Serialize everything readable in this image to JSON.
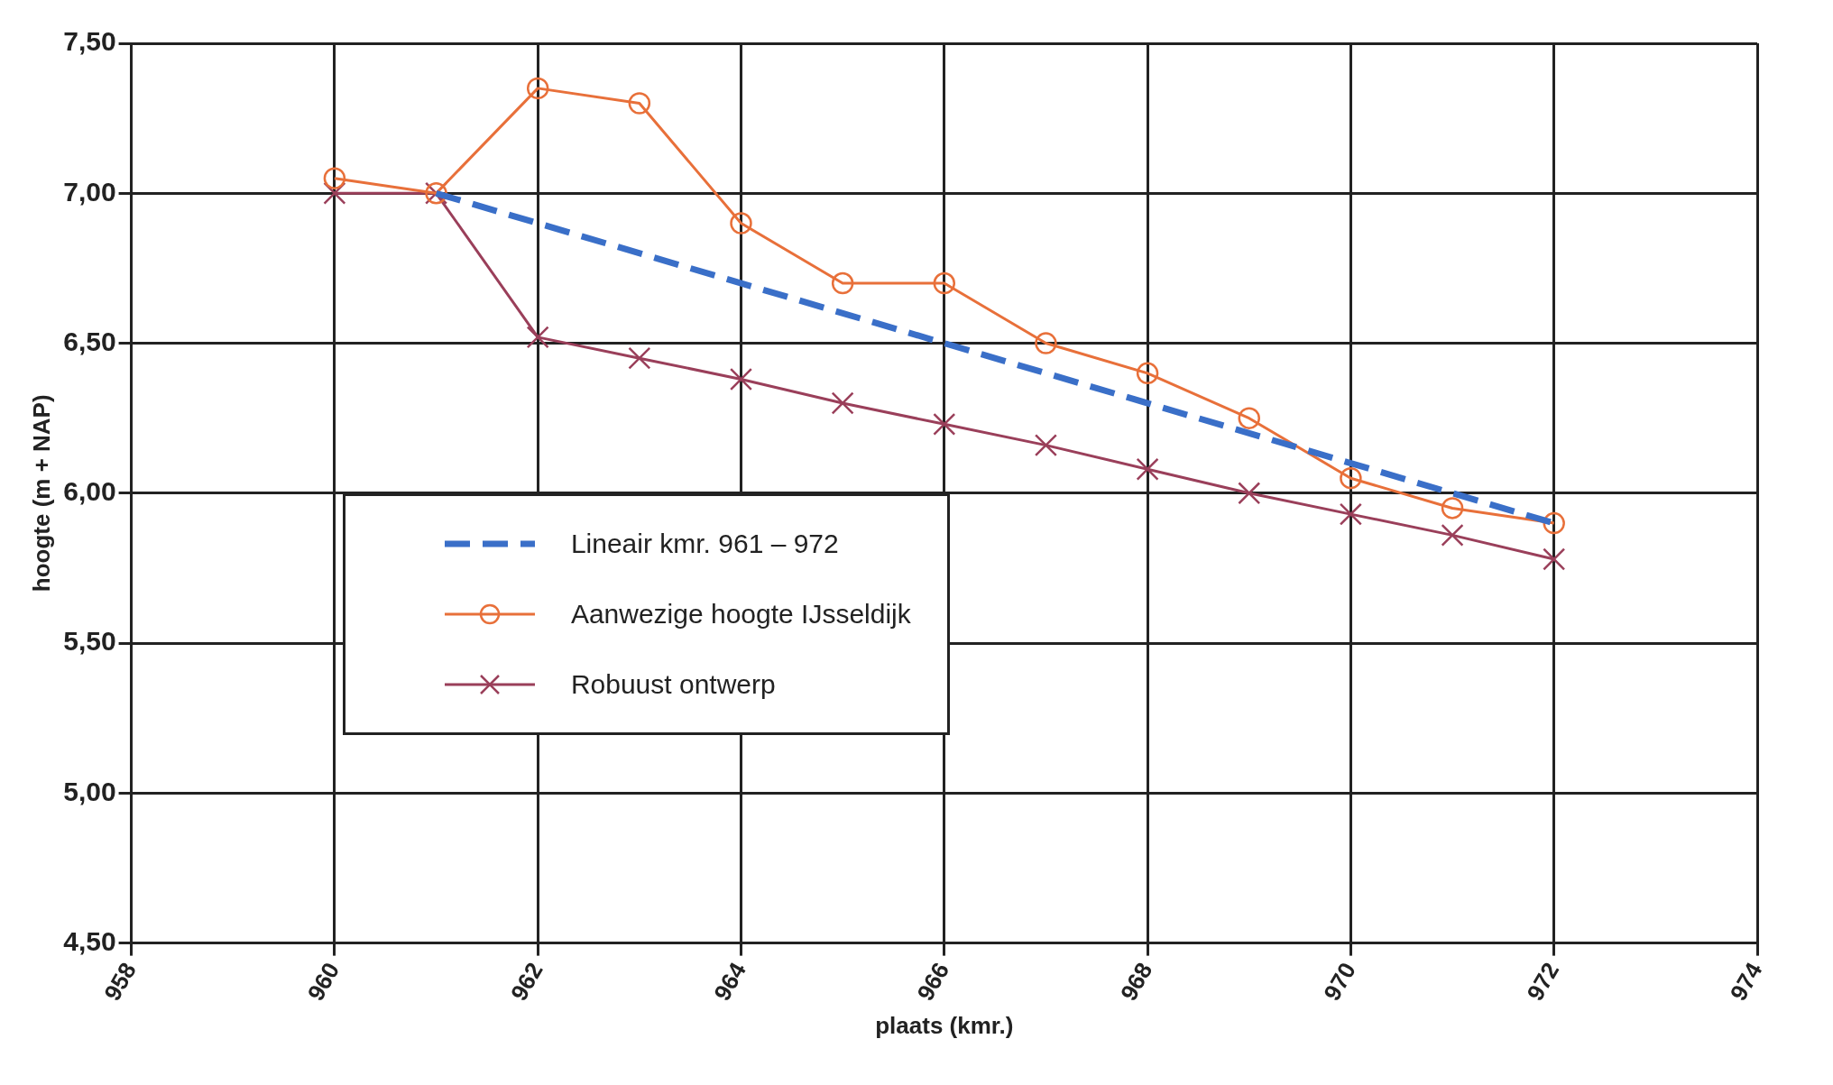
{
  "chart_data": {
    "type": "line",
    "xlabel": "plaats (kmr.)",
    "ylabel": "hoogte (m + NAP)",
    "xlim": [
      958,
      974
    ],
    "xticks": [
      958,
      960,
      962,
      964,
      966,
      968,
      970,
      972,
      974
    ],
    "ylim": [
      4.5,
      7.5
    ],
    "yticks": [
      {
        "value": 4.5,
        "label": "4,50"
      },
      {
        "value": 5,
        "label": "5,00"
      },
      {
        "value": 5.5,
        "label": "5,50"
      },
      {
        "value": 6,
        "label": "6,00"
      },
      {
        "value": 6.5,
        "label": "6,50"
      },
      {
        "value": 7,
        "label": "7,00"
      },
      {
        "value": 7.5,
        "label": "7,50"
      }
    ],
    "grid": true,
    "legend": "left",
    "series": [
      {
        "name": "Lineair kmr. 961 – 972",
        "color": "#3a6fc8",
        "x": [
          961,
          972
        ],
        "values": [
          7.0,
          5.9
        ],
        "line_style": "dashed"
      },
      {
        "name": "Aanwezige hoogte IJsseldijk",
        "color": "#e8703a",
        "x": [
          960,
          961,
          962,
          963,
          964,
          965,
          966,
          967,
          968,
          969,
          970,
          971,
          972
        ],
        "values": [
          7.05,
          7.0,
          7.35,
          7.3,
          6.9,
          6.7,
          6.7,
          6.5,
          6.4,
          6.25,
          6.05,
          5.95,
          5.9
        ],
        "marker": "circle",
        "line_style": "solid"
      },
      {
        "name": "Robuust ontwerp",
        "color": "#9a3f5a",
        "x": [
          960,
          961,
          962,
          963,
          964,
          965,
          966,
          967,
          968,
          969,
          970,
          971,
          972
        ],
        "values": [
          7.0,
          7.0,
          6.52,
          6.45,
          6.38,
          6.3,
          6.23,
          6.16,
          6.08,
          6.0,
          5.93,
          5.86,
          5.78
        ],
        "marker": "cross",
        "line_style": "solid"
      }
    ]
  }
}
